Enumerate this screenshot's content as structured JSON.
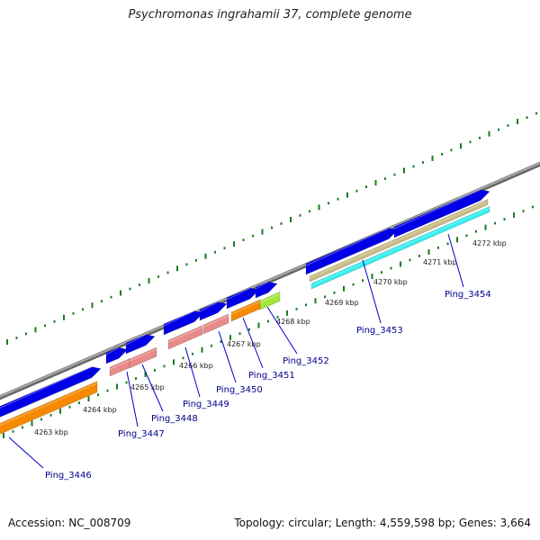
{
  "title": "Psychromonas ingrahamii 37, complete genome",
  "footer": {
    "accession": "Accession: NC_008709",
    "summary": "Topology: circular; Length: 4,559,598 bp; Genes: 3,664"
  },
  "colors": {
    "backbone": "#8c8c8c",
    "tick": "#1a7a1a",
    "cds": "#0000e6",
    "rrna": "#e98a8a",
    "gene_orange": "#f58a00",
    "gene_lime": "#a5e63a",
    "gene_khaki": "#c8bc84",
    "gene_cyan": "#33f0f0",
    "label_line": "#0000cc"
  },
  "scale": [
    {
      "label": "4263 kbp"
    },
    {
      "label": "4264 kbp"
    },
    {
      "label": "4265 kbp"
    },
    {
      "label": "4266 kbp"
    },
    {
      "label": "4267 kbp"
    },
    {
      "label": "4268 kbp"
    },
    {
      "label": "4269 kbp"
    },
    {
      "label": "4270 kbp"
    },
    {
      "label": "4271 kbp"
    },
    {
      "label": "4272 kbp"
    }
  ],
  "gene_labels": [
    {
      "label": "Ping_3446"
    },
    {
      "label": "Ping_3447"
    },
    {
      "label": "Ping_3448"
    },
    {
      "label": "Ping_3449"
    },
    {
      "label": "Ping_3450"
    },
    {
      "label": "Ping_3451"
    },
    {
      "label": "Ping_3452"
    },
    {
      "label": "Ping_3453"
    },
    {
      "label": "Ping_3454"
    }
  ]
}
